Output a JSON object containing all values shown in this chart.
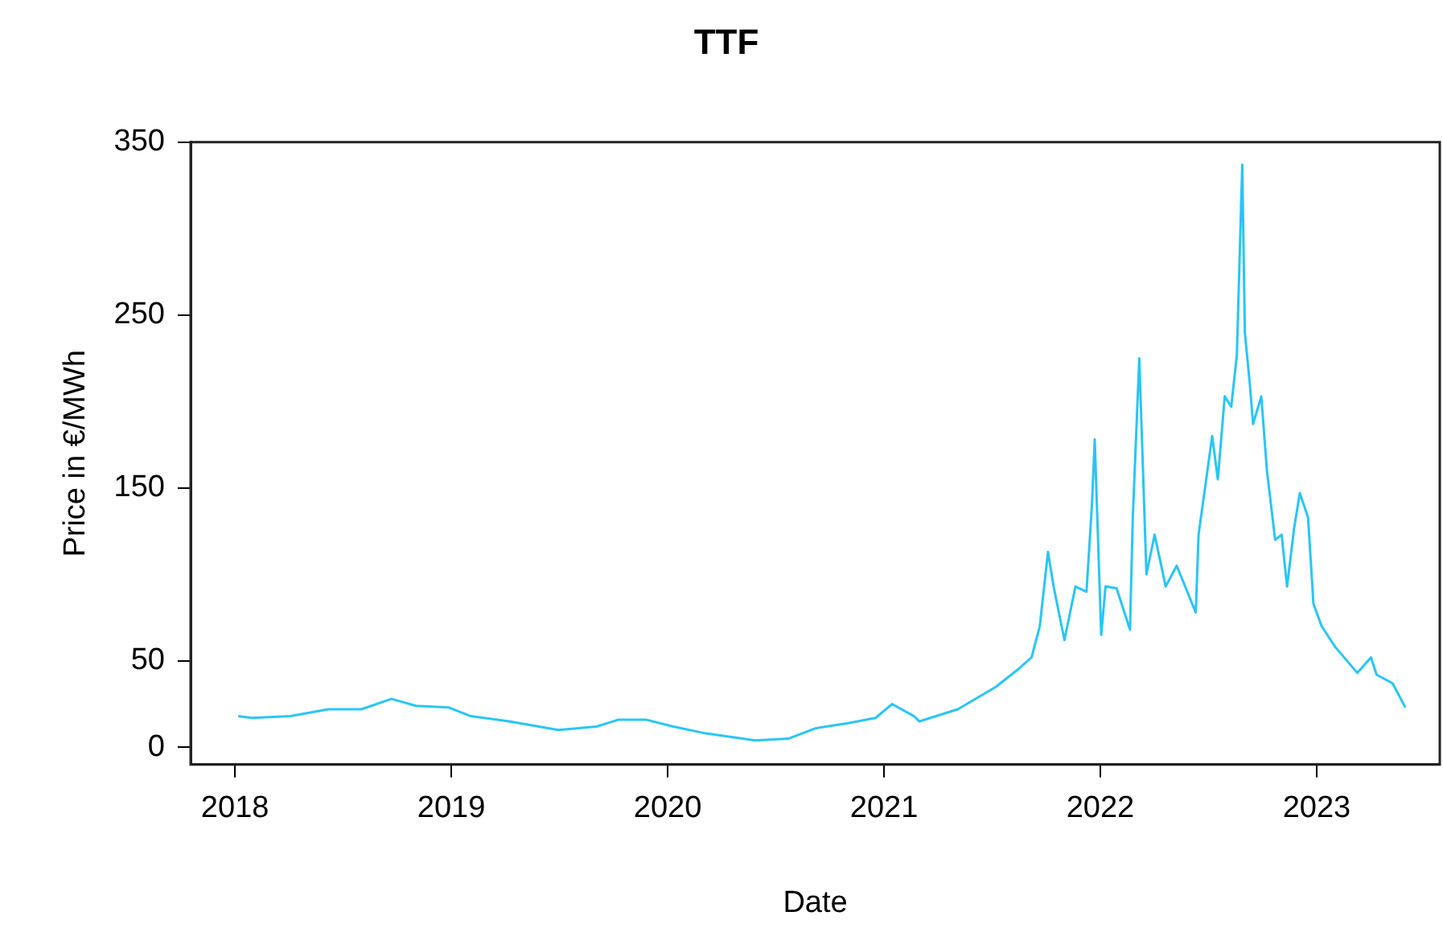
{
  "chart_data": {
    "type": "line",
    "title": "TTF",
    "xlabel": "Date",
    "ylabel": "Price in €/MWh",
    "x": [
      2018.015,
      2018.078,
      2018.256,
      2018.432,
      2018.584,
      2018.723,
      2018.837,
      2018.989,
      2019.09,
      2019.267,
      2019.495,
      2019.671,
      2019.773,
      2019.899,
      2020.026,
      2020.178,
      2020.405,
      2020.557,
      2020.684,
      2020.835,
      2020.961,
      2021.037,
      2021.139,
      2021.164,
      2021.341,
      2021.518,
      2021.619,
      2021.682,
      2021.72,
      2021.758,
      2021.784,
      2021.834,
      2021.885,
      2021.936,
      2021.961,
      2021.974,
      2022.004,
      2022.024,
      2022.075,
      2022.137,
      2022.15,
      2022.18,
      2022.213,
      2022.251,
      2022.302,
      2022.353,
      2022.441,
      2022.454,
      2022.517,
      2022.543,
      2022.575,
      2022.605,
      2022.631,
      2022.656,
      2022.668,
      2022.691,
      2022.706,
      2022.744,
      2022.77,
      2022.808,
      2022.838,
      2022.863,
      2022.896,
      2022.922,
      2022.96,
      2022.985,
      2023.023,
      2023.086,
      2023.188,
      2023.251,
      2023.277,
      2023.351,
      2023.41
    ],
    "series": [
      {
        "color": "#29c5f6",
        "values": [
          18,
          17,
          18,
          22,
          22,
          28,
          24,
          23,
          18,
          15,
          10,
          12,
          16,
          16,
          12,
          8,
          4,
          5,
          11,
          14,
          17,
          25,
          18,
          15,
          22,
          35,
          45,
          52,
          70,
          113,
          93,
          62,
          93,
          90,
          140,
          178,
          65,
          93,
          92,
          68,
          133,
          225,
          100,
          123,
          93,
          105,
          78,
          123,
          180,
          155,
          203,
          197,
          227,
          337,
          240,
          210,
          187,
          203,
          160,
          120,
          123,
          93,
          127,
          147,
          133,
          83,
          70,
          58,
          43,
          52,
          42,
          37,
          23
        ]
      }
    ],
    "xlim": [
      2017.795,
      2023.569
    ],
    "xticks": [
      2018,
      2019,
      2020,
      2021,
      2022,
      2023
    ],
    "ylim": [
      -10,
      350
    ],
    "yticks": [
      0,
      50,
      150,
      250,
      350
    ],
    "grid": false,
    "legend": false,
    "line_style": "solid",
    "marker": "none"
  }
}
